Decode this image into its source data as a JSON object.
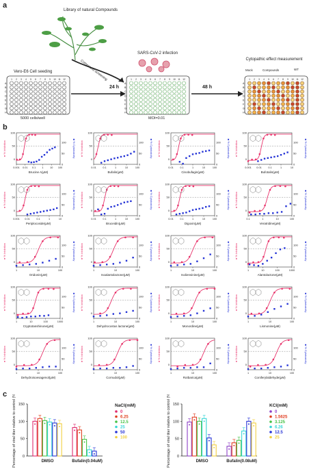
{
  "panel_a": {
    "letter": "a",
    "library_label": "Library of natural Compounds",
    "seeding_label": "Vero-E6 Cell seeding",
    "seeding_note": "5000 cells/well",
    "step1_time": "24 h",
    "compound_screening": "Compound screening",
    "infection_label": "SARS-CoV-2 infection",
    "moi": "MOI=0.01",
    "step2_time": "48 h",
    "measure_label": "Cytopathic effect measurement",
    "mock": "Mock",
    "compounds": "Compounds",
    "wt": "WT",
    "row_letters": [
      "A",
      "B",
      "C",
      "D",
      "E",
      "F",
      "G",
      "H"
    ],
    "col_numbers": [
      "1",
      "2",
      "3",
      "4",
      "5",
      "6",
      "7",
      "8",
      "9",
      "10",
      "11",
      "12"
    ]
  },
  "panel_b": {
    "letter": "b",
    "left_axis": "% Inhibition",
    "right_axis": "% Cytotoxicity",
    "ytick_left": [
      "100",
      "50",
      "0"
    ],
    "ytick_right": [
      "100",
      "80",
      "60",
      "40",
      "20",
      "0"
    ]
  },
  "panel_c": {
    "letter": "c",
    "ylabel": "Percentage of viral titer relative to control (%)"
  },
  "colors": {
    "inhibition": "#e8336b",
    "cytotox": "#2433d6",
    "plate_green": "#6cb36c",
    "plate_orange": "#e8923a",
    "plate_red": "#c9472c"
  },
  "chart_data": [
    {
      "type": "line",
      "title": "",
      "xlabel": "Brucine A(μM)",
      "xticks": [
        "0.001",
        "0.01",
        "0.1",
        "1",
        "10",
        "100"
      ],
      "ic50_log": -2.1,
      "tox_points": [
        [
          -1.6,
          8
        ],
        [
          -1.3,
          6
        ],
        [
          -1.0,
          7
        ],
        [
          -0.7,
          9
        ],
        [
          -0.4,
          14
        ],
        [
          -0.1,
          24
        ],
        [
          0.2,
          30
        ],
        [
          0.5,
          38
        ],
        [
          0.8,
          46
        ],
        [
          1.1,
          50
        ],
        [
          1.4,
          54
        ]
      ]
    },
    {
      "type": "line",
      "title": "",
      "xlabel": "Bufalin(μM)",
      "xticks": [
        "0.01",
        "0.1",
        "1",
        "10",
        "100"
      ],
      "ic50_log": -1.6,
      "tox_points": [
        [
          -1.3,
          5
        ],
        [
          -1.0,
          10
        ],
        [
          -0.7,
          13
        ],
        [
          -0.4,
          16
        ],
        [
          -0.1,
          19
        ],
        [
          0.2,
          21
        ],
        [
          0.5,
          24
        ],
        [
          0.8,
          26
        ],
        [
          1.1,
          29
        ],
        [
          1.4,
          34
        ],
        [
          1.7,
          40
        ]
      ]
    },
    {
      "type": "line",
      "title": "",
      "xlabel": "Cinobufagin(μM)",
      "xticks": [
        "0.01",
        "0.1",
        "1",
        "10",
        "100"
      ],
      "ic50_log": -1.3,
      "tox_points": [
        [
          -1.2,
          8
        ],
        [
          -0.9,
          2
        ],
        [
          -0.6,
          20
        ],
        [
          -0.3,
          26
        ],
        [
          0.0,
          32
        ],
        [
          0.3,
          34
        ],
        [
          0.6,
          36
        ],
        [
          0.9,
          40
        ],
        [
          1.2,
          42
        ],
        [
          1.5,
          44
        ]
      ]
    },
    {
      "type": "line",
      "title": "",
      "xlabel": "Bufotalin(μM)",
      "xticks": [
        "0.001",
        "0.01",
        "0.1",
        "1",
        "10"
      ],
      "ic50_log": -1.8,
      "tox_points": [
        [
          -2.1,
          10
        ],
        [
          -1.8,
          14
        ],
        [
          -1.5,
          18
        ],
        [
          -1.2,
          20
        ],
        [
          -0.9,
          22
        ],
        [
          -0.6,
          24
        ],
        [
          -0.3,
          26
        ],
        [
          0.0,
          30
        ],
        [
          0.3,
          34
        ],
        [
          0.6,
          38
        ]
      ]
    },
    {
      "type": "line",
      "title": "",
      "xlabel": "Periplocoside(μM)",
      "xticks": [
        "0.001",
        "0.01",
        "0.1",
        "1",
        "10"
      ],
      "ic50_log": -2.2,
      "tox_points": [
        [
          -2.0,
          4
        ],
        [
          -1.7,
          6
        ],
        [
          -1.4,
          8
        ],
        [
          -1.1,
          10
        ],
        [
          -0.8,
          12
        ],
        [
          -0.5,
          14
        ],
        [
          -0.2,
          16
        ],
        [
          0.1,
          18
        ],
        [
          0.4,
          20
        ],
        [
          0.7,
          24
        ]
      ]
    },
    {
      "type": "line",
      "title": "",
      "xlabel": "Bruceidin(μM)",
      "xticks": [
        "0.01",
        "0.1",
        "1",
        "10",
        "100"
      ],
      "ic50_log": -1.0,
      "tox_points": [
        [
          -1.6,
          20
        ],
        [
          -1.3,
          4
        ],
        [
          -1.0,
          6
        ],
        [
          -0.7,
          22
        ],
        [
          -0.4,
          28
        ],
        [
          -0.1,
          30
        ],
        [
          0.2,
          34
        ],
        [
          0.5,
          38
        ],
        [
          0.8,
          42
        ],
        [
          1.1,
          44
        ],
        [
          1.4,
          46
        ]
      ]
    },
    {
      "type": "line",
      "title": "",
      "xlabel": "Digoxin(μM)",
      "xticks": [
        "0.01",
        "0.1",
        "1",
        "10",
        "100"
      ],
      "ic50_log": -1.2,
      "tox_points": [
        [
          -1.5,
          4
        ],
        [
          -1.2,
          6
        ],
        [
          -0.9,
          8
        ],
        [
          -0.6,
          10
        ],
        [
          -0.3,
          14
        ],
        [
          0.0,
          18
        ],
        [
          0.3,
          20
        ],
        [
          0.6,
          22
        ],
        [
          0.9,
          24
        ],
        [
          1.2,
          28
        ],
        [
          1.5,
          30
        ]
      ]
    },
    {
      "type": "line",
      "title": "",
      "xlabel": "Veratridine(μM)",
      "xticks": [
        "0.1",
        "1",
        "10",
        "100"
      ],
      "ic50_log": 0.3,
      "tox_points": [
        [
          -0.8,
          4
        ],
        [
          -0.5,
          4
        ],
        [
          -0.2,
          6
        ],
        [
          0.1,
          6
        ],
        [
          0.4,
          8
        ],
        [
          0.7,
          8
        ],
        [
          1.0,
          10
        ],
        [
          1.3,
          12
        ],
        [
          1.6,
          30
        ],
        [
          1.9,
          38
        ]
      ]
    },
    {
      "type": "line",
      "title": "",
      "xlabel": "Oridonin(μM)",
      "xticks": [
        "1",
        "10",
        "100"
      ],
      "ic50_log": 1.0,
      "tox_points": [
        [
          0.0,
          4
        ],
        [
          0.3,
          6
        ],
        [
          0.6,
          8
        ],
        [
          0.9,
          10
        ],
        [
          1.2,
          14
        ],
        [
          1.5,
          20
        ],
        [
          1.8,
          26
        ]
      ]
    },
    {
      "type": "line",
      "title": "",
      "xlabel": "Isoalantolactone(μM)",
      "xticks": [
        "1",
        "10",
        "100"
      ],
      "ic50_log": 0.9,
      "tox_points": [
        [
          0.0,
          4
        ],
        [
          0.3,
          6
        ],
        [
          0.6,
          8
        ],
        [
          0.9,
          10
        ],
        [
          1.2,
          14
        ],
        [
          1.5,
          20
        ],
        [
          1.8,
          30
        ]
      ]
    },
    {
      "type": "line",
      "title": "",
      "xlabel": "Isoliensinine(μM)",
      "xticks": [
        "1",
        "10",
        "100"
      ],
      "ic50_log": 1.0,
      "tox_points": [
        [
          0.0,
          4
        ],
        [
          0.3,
          6
        ],
        [
          0.6,
          8
        ],
        [
          0.9,
          10
        ],
        [
          1.2,
          18
        ],
        [
          1.5,
          28
        ],
        [
          1.8,
          40
        ]
      ]
    },
    {
      "type": "line",
      "title": "",
      "xlabel": "Alantolactone(μM)",
      "xticks": [
        "1",
        "10",
        "100",
        "1000"
      ],
      "ic50_log": 1.2,
      "tox_points": [
        [
          0.1,
          8
        ],
        [
          0.4,
          6
        ],
        [
          0.7,
          4
        ],
        [
          1.0,
          10
        ],
        [
          1.3,
          20
        ],
        [
          1.6,
          30
        ],
        [
          1.9,
          44
        ],
        [
          2.2,
          56
        ],
        [
          2.5,
          60
        ]
      ]
    },
    {
      "type": "line",
      "title": "",
      "xlabel": "Cryptotanshinone(μM)",
      "xticks": [
        "1",
        "10",
        "100",
        "1000"
      ],
      "ic50_log": 1.3,
      "tox_points": [
        [
          0.1,
          4
        ],
        [
          0.4,
          2
        ],
        [
          0.7,
          4
        ],
        [
          1.0,
          6
        ],
        [
          1.3,
          6
        ],
        [
          1.6,
          8
        ],
        [
          1.9,
          8
        ],
        [
          2.2,
          10
        ]
      ]
    },
    {
      "type": "line",
      "title": "",
      "xlabel": "Dehydrocostus lactone(μM)",
      "xticks": [
        "1",
        "10",
        "100"
      ],
      "ic50_log": 0.8,
      "tox_points": [
        [
          0.0,
          6
        ],
        [
          0.3,
          8
        ],
        [
          0.6,
          10
        ],
        [
          0.9,
          14
        ],
        [
          1.2,
          16
        ],
        [
          1.5,
          20
        ],
        [
          1.8,
          24
        ]
      ]
    },
    {
      "type": "line",
      "title": "",
      "xlabel": "Monordine(μM)",
      "xticks": [
        "1",
        "10",
        "100"
      ],
      "ic50_log": 1.1,
      "tox_points": [
        [
          0.0,
          4
        ],
        [
          0.3,
          6
        ],
        [
          0.6,
          8
        ],
        [
          0.9,
          10
        ],
        [
          1.2,
          16
        ],
        [
          1.5,
          24
        ],
        [
          1.8,
          32
        ]
      ]
    },
    {
      "type": "line",
      "title": "",
      "xlabel": "Lismonine(μM)",
      "xticks": [
        "1",
        "10",
        "100"
      ],
      "ic50_log": 1.0,
      "tox_points": [
        [
          0.0,
          6
        ],
        [
          0.3,
          8
        ],
        [
          0.6,
          12
        ],
        [
          0.9,
          20
        ],
        [
          1.2,
          30
        ],
        [
          1.5,
          38
        ],
        [
          1.8,
          46
        ]
      ]
    },
    {
      "type": "line",
      "title": "",
      "xlabel": "Dehydroisoesagenol(μM)",
      "xticks": [
        "1",
        "10",
        "100"
      ],
      "ic50_log": 1.2,
      "tox_points": [
        [
          0.0,
          2
        ],
        [
          0.3,
          4
        ],
        [
          0.6,
          4
        ],
        [
          0.9,
          6
        ],
        [
          1.2,
          8
        ],
        [
          1.5,
          10
        ],
        [
          1.8,
          10
        ]
      ]
    },
    {
      "type": "line",
      "title": "",
      "xlabel": "Cornudol(μM)",
      "xticks": [
        "1",
        "10",
        "100"
      ],
      "ic50_log": 1.1,
      "tox_points": [
        [
          0.0,
          2
        ],
        [
          0.3,
          4
        ],
        [
          0.6,
          4
        ],
        [
          0.9,
          6
        ],
        [
          1.2,
          6
        ],
        [
          1.5,
          8
        ],
        [
          1.8,
          12
        ]
      ]
    },
    {
      "type": "line",
      "title": "",
      "xlabel": "Rotbarica(μM)",
      "xticks": [
        "1",
        "10",
        "100"
      ],
      "ic50_log": 1.5,
      "tox_points": [
        [
          0.0,
          2
        ],
        [
          0.3,
          4
        ],
        [
          0.6,
          6
        ],
        [
          0.9,
          6
        ],
        [
          1.2,
          8
        ],
        [
          1.5,
          8
        ],
        [
          1.8,
          20
        ]
      ]
    },
    {
      "type": "line",
      "title": "",
      "xlabel": "Coniferylaldehyde(μM)",
      "xticks": [
        "1",
        "10",
        "100"
      ],
      "ic50_log": 1.3,
      "tox_points": [
        [
          0.0,
          2
        ],
        [
          0.3,
          4
        ],
        [
          0.6,
          4
        ],
        [
          0.9,
          6
        ],
        [
          1.2,
          8
        ],
        [
          1.5,
          10
        ],
        [
          1.8,
          14
        ]
      ]
    },
    {
      "type": "bar",
      "ylabel": "Percentage of viral titer relative to control (%)",
      "ylim": [
        0,
        150
      ],
      "yticks": [
        "0",
        "50",
        "100",
        "150"
      ],
      "categories": [
        "DMSO",
        "Bufalin(0.04uM)"
      ],
      "legend_title": "NaCl(mM)",
      "series": [
        {
          "name": "0",
          "color": "#e02a6e",
          "values": [
            100,
            82
          ]
        },
        {
          "name": "6.25",
          "color": "#e0401f",
          "values": [
            108,
            75
          ]
        },
        {
          "name": "12.5",
          "color": "#45c245",
          "values": [
            102,
            48
          ]
        },
        {
          "name": "25",
          "color": "#37d6d6",
          "values": [
            98,
            18
          ]
        },
        {
          "name": "50",
          "color": "#2633d6",
          "values": [
            95,
            14
          ]
        },
        {
          "name": "100",
          "color": "#f2d040",
          "values": [
            93,
            0
          ]
        }
      ]
    },
    {
      "type": "bar",
      "ylabel": "Percentage of viral titer relative to control (%)",
      "ylim": [
        0,
        150
      ],
      "yticks": [
        "0",
        "50",
        "100",
        "150"
      ],
      "categories": [
        "DMSO",
        "Bufalin(0.08uM)"
      ],
      "legend_title": "KCl(mM)",
      "series": [
        {
          "name": "0",
          "color": "#8d3fc6",
          "values": [
            98,
            28
          ]
        },
        {
          "name": "1.5625",
          "color": "#e03b1f",
          "values": [
            112,
            38
          ]
        },
        {
          "name": "3.125",
          "color": "#45c245",
          "values": [
            100,
            45
          ]
        },
        {
          "name": "6.26",
          "color": "#37d6d6",
          "values": [
            108,
            72
          ]
        },
        {
          "name": "12.5",
          "color": "#2633d6",
          "values": [
            52,
            100
          ]
        },
        {
          "name": "25",
          "color": "#f2d040",
          "values": [
            32,
            95
          ]
        }
      ]
    }
  ]
}
